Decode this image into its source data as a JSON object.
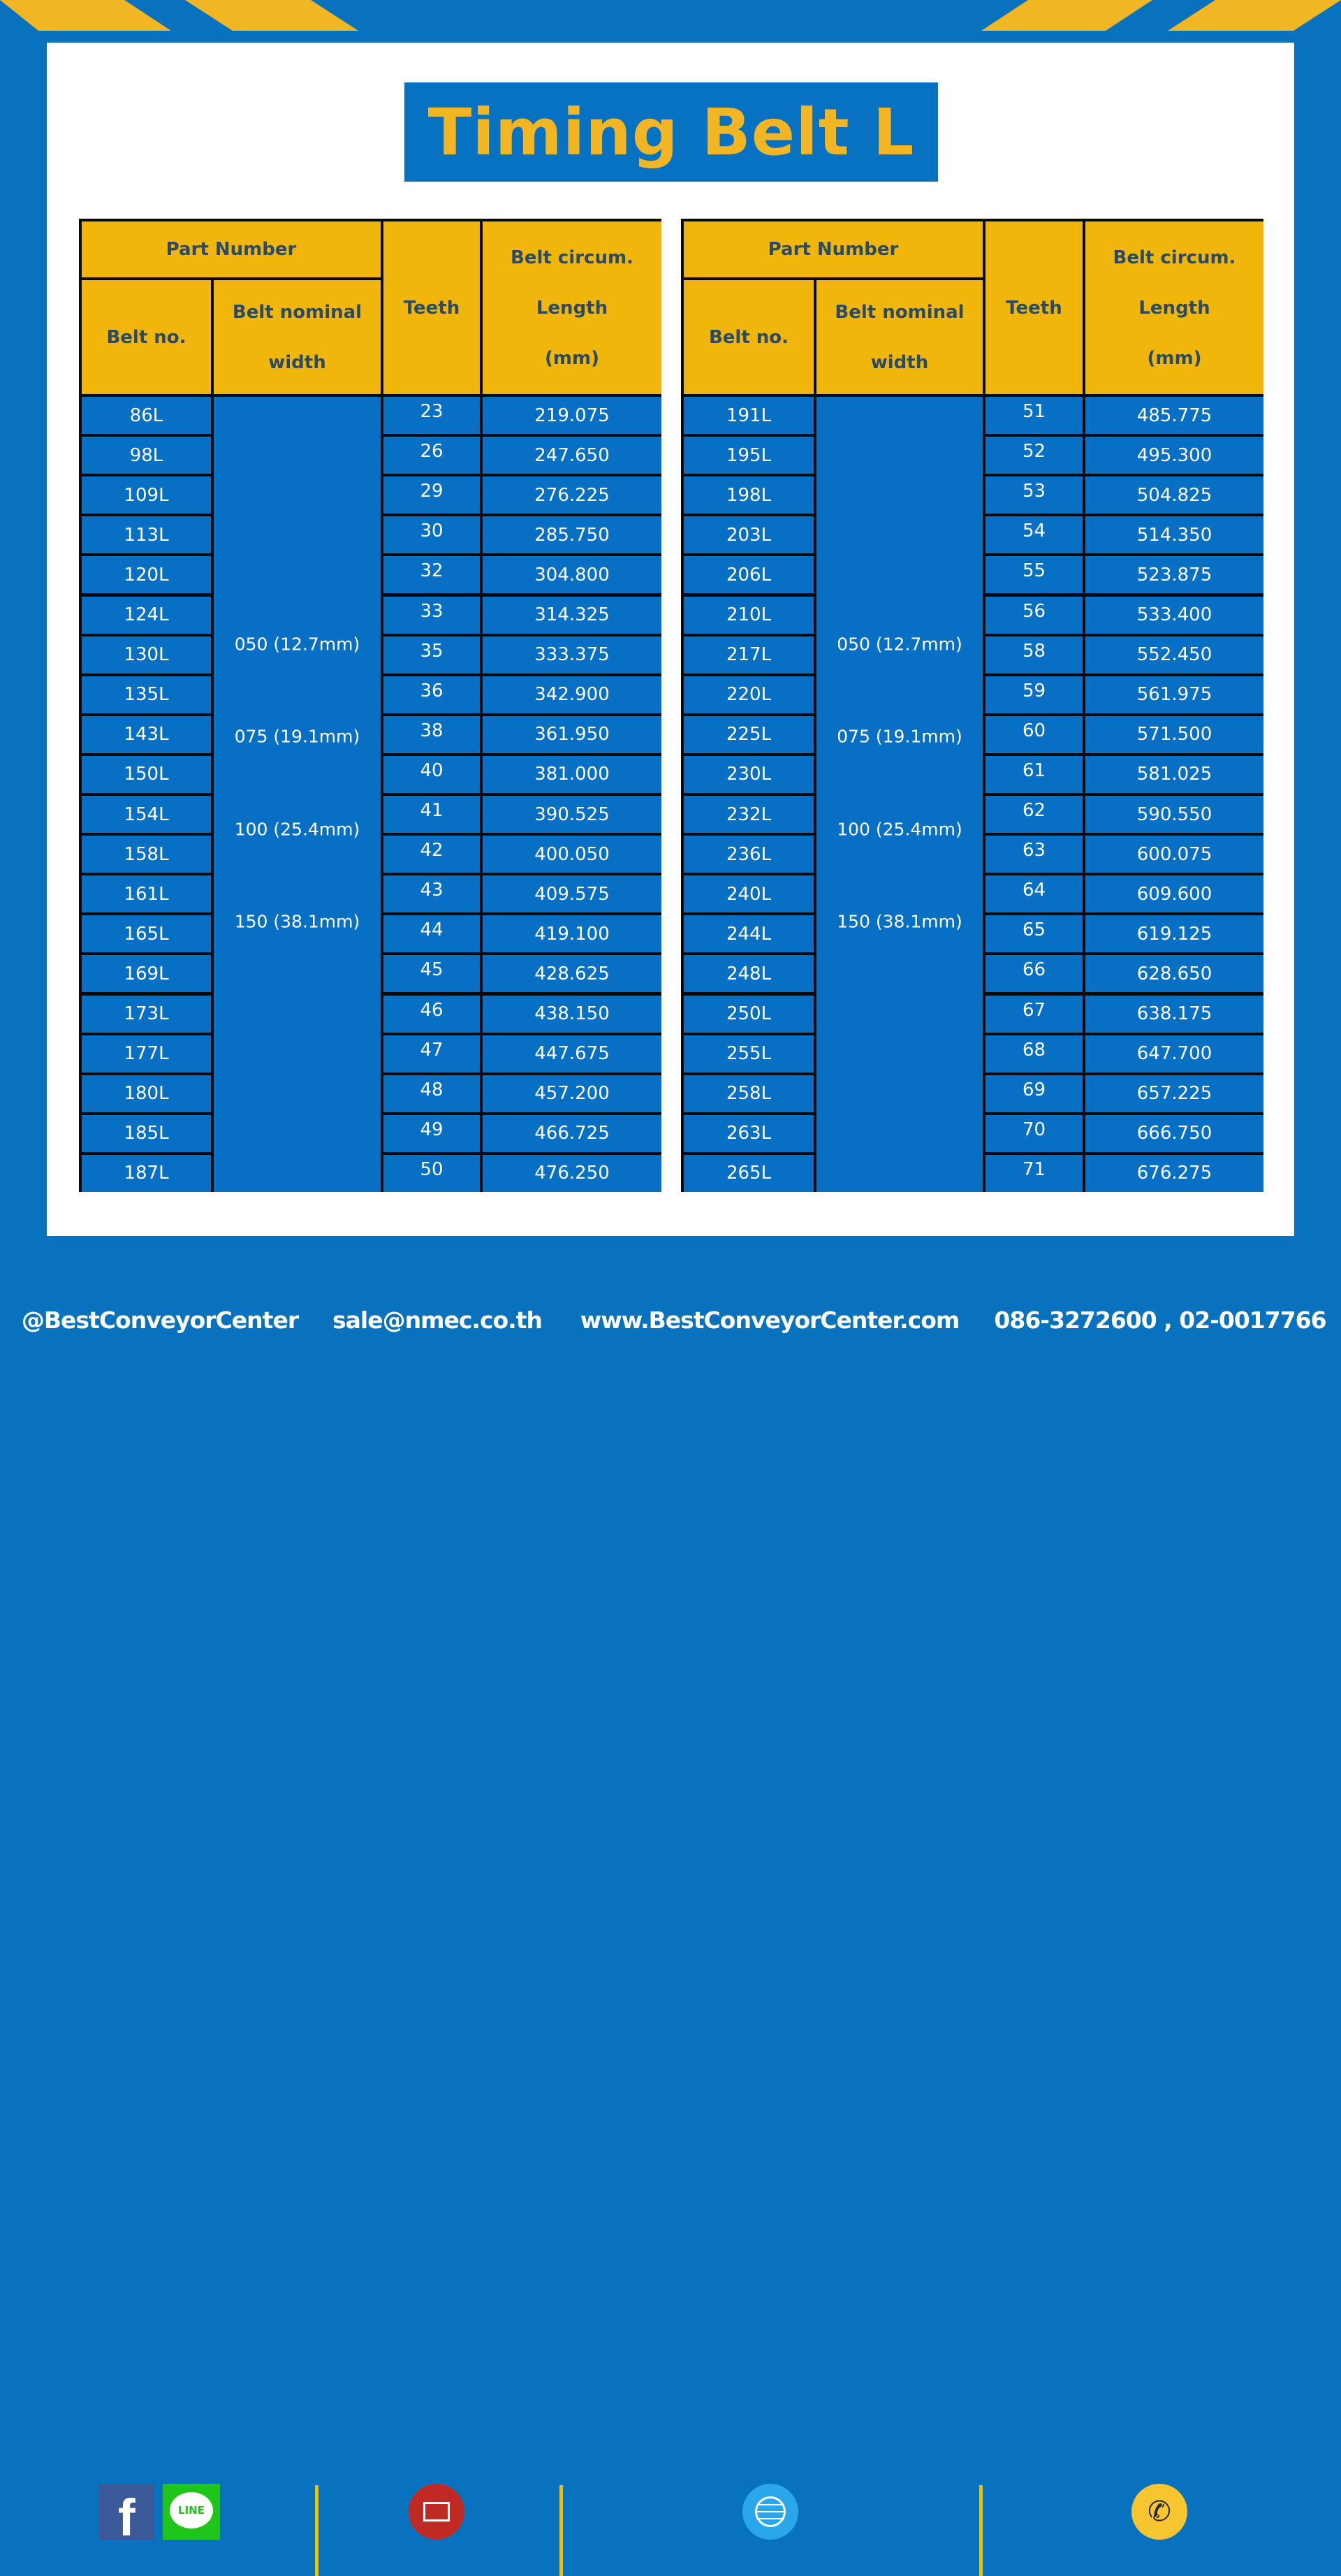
{
  "title": "Timing Belt L",
  "colors": {
    "blue": "#0872c2",
    "yellow": "#f0b60c",
    "header_text": "#2c4a60"
  },
  "table_headers": {
    "part_number": "Part Number",
    "belt_no": "Belt no.",
    "belt_nominal_width": [
      "Belt nominal",
      "width"
    ],
    "teeth": "Teeth",
    "belt_circum_length": [
      "Belt circum.",
      "Length",
      "(mm)"
    ]
  },
  "widths": [
    "050 (12.7mm)",
    "075 (19.1mm)",
    "100 (25.4mm)",
    "150 (38.1mm)"
  ],
  "tables": [
    {
      "rows": [
        [
          "86L",
          "23",
          "219.075"
        ],
        [
          "98L",
          "26",
          "247.650"
        ],
        [
          "109L",
          "29",
          "276.225"
        ],
        [
          "113L",
          "30",
          "285.750"
        ],
        [
          "120L",
          "32",
          "304.800"
        ],
        [
          "124L",
          "33",
          "314.325"
        ],
        [
          "130L",
          "35",
          "333.375"
        ],
        [
          "135L",
          "36",
          "342.900"
        ],
        [
          "143L",
          "38",
          "361.950"
        ],
        [
          "150L",
          "40",
          "381.000"
        ],
        [
          "154L",
          "41",
          "390.525"
        ],
        [
          "158L",
          "42",
          "400.050"
        ],
        [
          "161L",
          "43",
          "409.575"
        ],
        [
          "165L",
          "44",
          "419.100"
        ],
        [
          "169L",
          "45",
          "428.625"
        ],
        [
          "173L",
          "46",
          "438.150"
        ],
        [
          "177L",
          "47",
          "447.675"
        ],
        [
          "180L",
          "48",
          "457.200"
        ],
        [
          "185L",
          "49",
          "466.725"
        ],
        [
          "187L",
          "50",
          "476.250"
        ]
      ]
    },
    {
      "rows": [
        [
          "191L",
          "51",
          "485.775"
        ],
        [
          "195L",
          "52",
          "495.300"
        ],
        [
          "198L",
          "53",
          "504.825"
        ],
        [
          "203L",
          "54",
          "514.350"
        ],
        [
          "206L",
          "55",
          "523.875"
        ],
        [
          "210L",
          "56",
          "533.400"
        ],
        [
          "217L",
          "58",
          "552.450"
        ],
        [
          "220L",
          "59",
          "561.975"
        ],
        [
          "225L",
          "60",
          "571.500"
        ],
        [
          "230L",
          "61",
          "581.025"
        ],
        [
          "232L",
          "62",
          "590.550"
        ],
        [
          "236L",
          "63",
          "600.075"
        ],
        [
          "240L",
          "64",
          "609.600"
        ],
        [
          "244L",
          "65",
          "619.125"
        ],
        [
          "248L",
          "66",
          "628.650"
        ],
        [
          "250L",
          "67",
          "638.175"
        ],
        [
          "255L",
          "68",
          "647.700"
        ],
        [
          "258L",
          "69",
          "657.225"
        ],
        [
          "263L",
          "70",
          "666.750"
        ],
        [
          "265L",
          "71",
          "676.275"
        ]
      ]
    }
  ],
  "footer": {
    "social_handle": "@BestConveyorCenter",
    "email": "sale@nmec.co.th",
    "website": "www.BestConveyorCenter.com",
    "phone": "086-3272600 , 02-0017766",
    "icons": [
      "facebook-icon",
      "line-icon",
      "email-icon",
      "globe-icon",
      "phone-icon"
    ],
    "line_icon_text": "LINE"
  }
}
